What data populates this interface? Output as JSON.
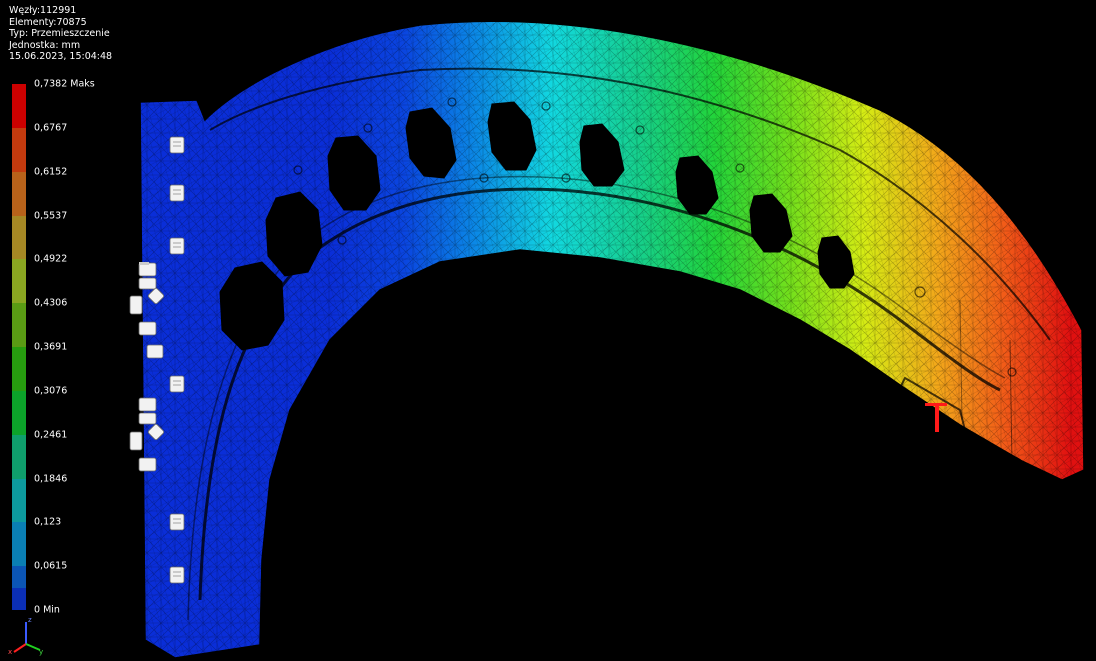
{
  "info": {
    "nodes": "Węzły:112991",
    "elements": "Elementy:70875",
    "type": "Typ: Przemieszczenie",
    "unit": "Jednostka: mm",
    "timestamp": "15.06.2023, 15:04:48"
  },
  "legend": {
    "ticks": [
      "0,7382 Maks",
      "0,6767",
      "0,6152",
      "0,5537",
      "0,4922",
      "0,4306",
      "0,3691",
      "0,3076",
      "0,2461",
      "0,1846",
      "0,123",
      "0,0615",
      "0 Min"
    ],
    "colors": [
      "#cc0000",
      "#c33a0e",
      "#b8621a",
      "#a68824",
      "#8aa621",
      "#5a9b14",
      "#279c0f",
      "#0ca22a",
      "#0f9e6c",
      "#0d9a9e",
      "#0a7fb4",
      "#0b55b5",
      "#0b2fb6"
    ]
  },
  "triad": {
    "x": "x",
    "y": "y",
    "z": "z"
  }
}
